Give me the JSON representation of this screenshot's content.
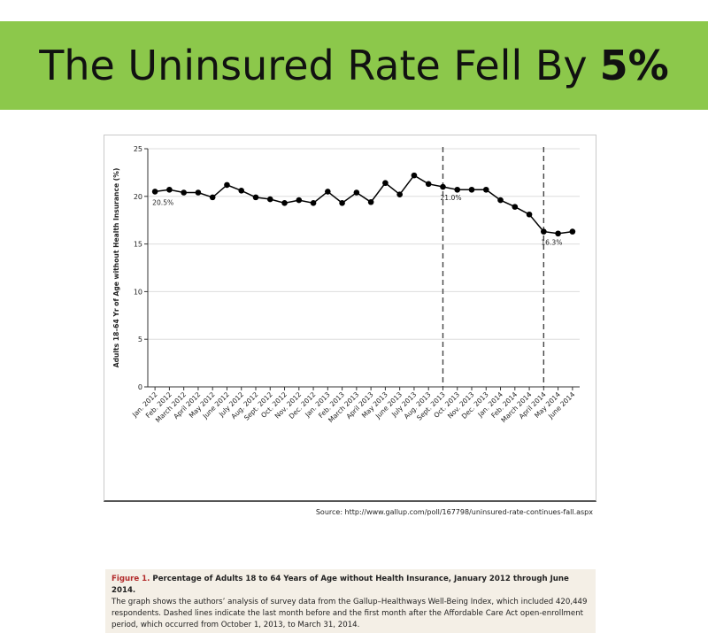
{
  "slide": {
    "title_main": "The Uninsured Rate Fell By",
    "title_emphasis": "5%",
    "banner_color": "#8cc84b",
    "source": "Source: http://www.gallup.com/poll/167798/uninsured-rate-continues-fall.aspx"
  },
  "caption": {
    "figure_label": "Figure 1.",
    "heading": "Percentage of Adults 18 to 64 Years of Age without Health Insurance, January 2012 through June 2014.",
    "body": "The graph shows the authors’ analysis of survey data from the Gallup–Healthways Well-Being Index, which included 420,449 respondents. Dashed lines indicate the last month before and the first month after the Affordable Care Act open-enrollment period, which occurred from October 1, 2013, to March 31, 2014."
  },
  "chart_data": {
    "type": "line",
    "ylabel": "Adults 18–64 Yr of Age without Health Insurance (%)",
    "xlabel": "",
    "ylim": [
      0,
      25
    ],
    "yticks": [
      0,
      5,
      10,
      15,
      20,
      25
    ],
    "grid": true,
    "categories": [
      "Jan. 2012",
      "Feb. 2012",
      "March 2012",
      "April 2012",
      "May 2012",
      "June 2012",
      "July 2012",
      "Aug. 2012",
      "Sept. 2012",
      "Oct. 2012",
      "Nov. 2012",
      "Dec. 2012",
      "Jan. 2013",
      "Feb. 2013",
      "March 2013",
      "April 2013",
      "May 2013",
      "June 2013",
      "July 2013",
      "Aug. 2013",
      "Sept. 2013",
      "Oct. 2013",
      "Nov. 2013",
      "Dec. 2013",
      "Jan. 2014",
      "Feb. 2014",
      "March 2014",
      "April 2014",
      "May 2014",
      "June 2014"
    ],
    "values": [
      20.5,
      20.7,
      20.4,
      20.4,
      19.9,
      21.2,
      20.6,
      19.9,
      19.7,
      19.3,
      19.6,
      19.3,
      20.5,
      19.3,
      20.4,
      19.4,
      21.4,
      20.2,
      22.2,
      21.3,
      21.0,
      20.7,
      20.7,
      20.7,
      19.6,
      18.9,
      18.1,
      16.3,
      16.1,
      16.3
    ],
    "dashed_lines_at": [
      "Sept. 2013",
      "April 2014"
    ],
    "annotations": [
      {
        "category": "Jan. 2012",
        "text": "20.5%"
      },
      {
        "category": "Sept. 2013",
        "text": "21.0%"
      },
      {
        "category": "April 2014",
        "text": "16.3%"
      }
    ],
    "line_color": "#000000"
  }
}
